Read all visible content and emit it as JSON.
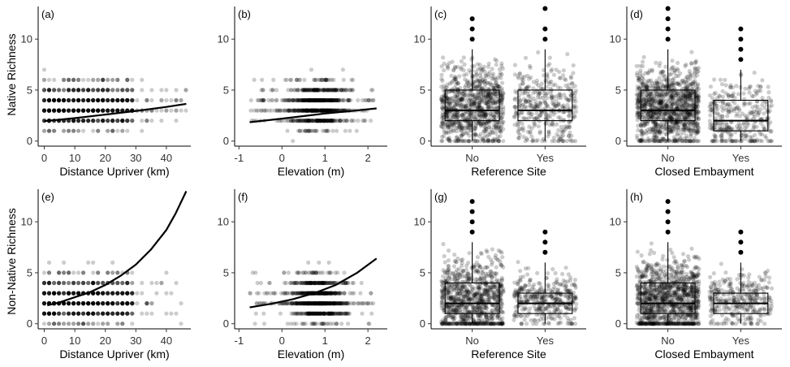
{
  "figure": {
    "row_labels": [
      "Native Richness",
      "Non-Native Richness"
    ]
  },
  "chart_data": [
    {
      "id": "a",
      "panel_label": "(a)",
      "type": "scatter",
      "xlabel": "Distance Upriver (km)",
      "ylabel": "Native Richness",
      "xlim": [
        -2,
        48
      ],
      "ylim": [
        -0.5,
        13.2
      ],
      "xticks": [
        0,
        10,
        20,
        30,
        40
      ],
      "yticks": [
        0,
        5,
        10
      ],
      "points": {
        "x_range": [
          0,
          47
        ],
        "x_weight": 0.62,
        "y_max": 13,
        "y_mode": 3
      },
      "fit": {
        "x": [
          0,
          10,
          20,
          30,
          40,
          46.5
        ],
        "y": [
          1.95,
          2.25,
          2.6,
          2.95,
          3.35,
          3.65
        ]
      }
    },
    {
      "id": "b",
      "panel_label": "(b)",
      "type": "scatter",
      "xlabel": "Elevation (m)",
      "ylabel": "",
      "xlim": [
        -1.1,
        2.45
      ],
      "ylim": [
        -0.5,
        13.2
      ],
      "xticks": [
        -1,
        0,
        1,
        2
      ],
      "yticks": [
        0,
        5,
        10
      ],
      "points": {
        "x_range": [
          -0.75,
          2.15
        ],
        "x_center": 0.85,
        "y_max": 13,
        "y_mode": 3
      },
      "fit": {
        "x": [
          -0.75,
          0,
          0.5,
          1,
          1.5,
          2.2
        ],
        "y": [
          1.85,
          2.2,
          2.45,
          2.7,
          2.9,
          3.2
        ]
      }
    },
    {
      "id": "c",
      "panel_label": "(c)",
      "type": "box",
      "xlabel": "Reference Site",
      "ylabel": "",
      "categories": [
        "No",
        "Yes"
      ],
      "ylim": [
        -0.5,
        13.2
      ],
      "yticks": [
        0,
        5,
        10
      ],
      "boxes": [
        {
          "q1": 2,
          "median": 3,
          "q3": 5,
          "whisker_low": 0,
          "whisker_high": 9,
          "outliers": [
            10,
            11,
            12
          ],
          "n_points": 900,
          "y_max": 12
        },
        {
          "q1": 2,
          "median": 3,
          "q3": 5,
          "whisker_low": 0,
          "whisker_high": 9,
          "outliers": [
            10,
            11,
            13
          ],
          "n_points": 380,
          "y_max": 13
        }
      ]
    },
    {
      "id": "d",
      "panel_label": "(d)",
      "type": "box",
      "xlabel": "Closed Embayment",
      "ylabel": "",
      "categories": [
        "No",
        "Yes"
      ],
      "ylim": [
        -0.5,
        13.2
      ],
      "yticks": [
        0,
        5,
        10
      ],
      "boxes": [
        {
          "q1": 2,
          "median": 3,
          "q3": 5,
          "whisker_low": 0,
          "whisker_high": 9,
          "outliers": [
            10,
            11,
            12,
            13
          ],
          "n_points": 1100,
          "y_max": 13
        },
        {
          "q1": 1,
          "median": 2,
          "q3": 4,
          "whisker_low": 0,
          "whisker_high": 7,
          "outliers": [
            8,
            9,
            10,
            11
          ],
          "n_points": 320,
          "y_max": 12
        }
      ]
    },
    {
      "id": "e",
      "panel_label": "(e)",
      "type": "scatter",
      "xlabel": "Distance Upriver (km)",
      "ylabel": "Non-Native Richness",
      "xlim": [
        -2,
        48
      ],
      "ylim": [
        -0.5,
        13.2
      ],
      "xticks": [
        0,
        10,
        20,
        30,
        40
      ],
      "yticks": [
        0,
        5,
        10
      ],
      "points": {
        "x_range": [
          0,
          47
        ],
        "x_weight": 0.62,
        "y_max": 12,
        "y_mode": 2
      },
      "fit": {
        "x": [
          1,
          5,
          10,
          15,
          20,
          25,
          30,
          35,
          40,
          43,
          46.5
        ],
        "y": [
          1.8,
          2.1,
          2.6,
          3.1,
          3.8,
          4.7,
          5.8,
          7.3,
          9.2,
          10.8,
          13.0
        ]
      }
    },
    {
      "id": "f",
      "panel_label": "(f)",
      "type": "scatter",
      "xlabel": "Elevation (m)",
      "ylabel": "",
      "xlim": [
        -1.1,
        2.45
      ],
      "ylim": [
        -0.5,
        13.2
      ],
      "xticks": [
        -1,
        0,
        1,
        2
      ],
      "yticks": [
        0,
        5,
        10
      ],
      "points": {
        "x_range": [
          -0.75,
          2.15
        ],
        "x_center": 0.85,
        "y_max": 12,
        "y_mode": 2
      },
      "fit": {
        "x": [
          -0.75,
          -0.25,
          0.25,
          0.75,
          1.25,
          1.75,
          2.2
        ],
        "y": [
          1.6,
          1.95,
          2.4,
          3.0,
          3.8,
          5.0,
          6.4
        ]
      }
    },
    {
      "id": "g",
      "panel_label": "(g)",
      "type": "box",
      "xlabel": "Reference Site",
      "ylabel": "",
      "categories": [
        "No",
        "Yes"
      ],
      "ylim": [
        -0.5,
        13.2
      ],
      "yticks": [
        0,
        5,
        10
      ],
      "boxes": [
        {
          "q1": 1,
          "median": 2,
          "q3": 4,
          "whisker_low": 0,
          "whisker_high": 8,
          "outliers": [
            9,
            10,
            11,
            12
          ],
          "n_points": 900,
          "y_max": 12
        },
        {
          "q1": 1,
          "median": 2,
          "q3": 3,
          "whisker_low": 0,
          "whisker_high": 6,
          "outliers": [
            7,
            8,
            9
          ],
          "n_points": 380,
          "y_max": 9
        }
      ]
    },
    {
      "id": "h",
      "panel_label": "(h)",
      "type": "box",
      "xlabel": "Closed Embayment",
      "ylabel": "",
      "categories": [
        "No",
        "Yes"
      ],
      "ylim": [
        -0.5,
        13.2
      ],
      "yticks": [
        0,
        5,
        10
      ],
      "boxes": [
        {
          "q1": 1,
          "median": 2,
          "q3": 4,
          "whisker_low": 0,
          "whisker_high": 8,
          "outliers": [
            9,
            10,
            11,
            12
          ],
          "n_points": 1100,
          "y_max": 12
        },
        {
          "q1": 1,
          "median": 2,
          "q3": 3,
          "whisker_low": 0,
          "whisker_high": 6,
          "outliers": [
            7,
            8,
            9
          ],
          "n_points": 320,
          "y_max": 9
        }
      ]
    }
  ]
}
